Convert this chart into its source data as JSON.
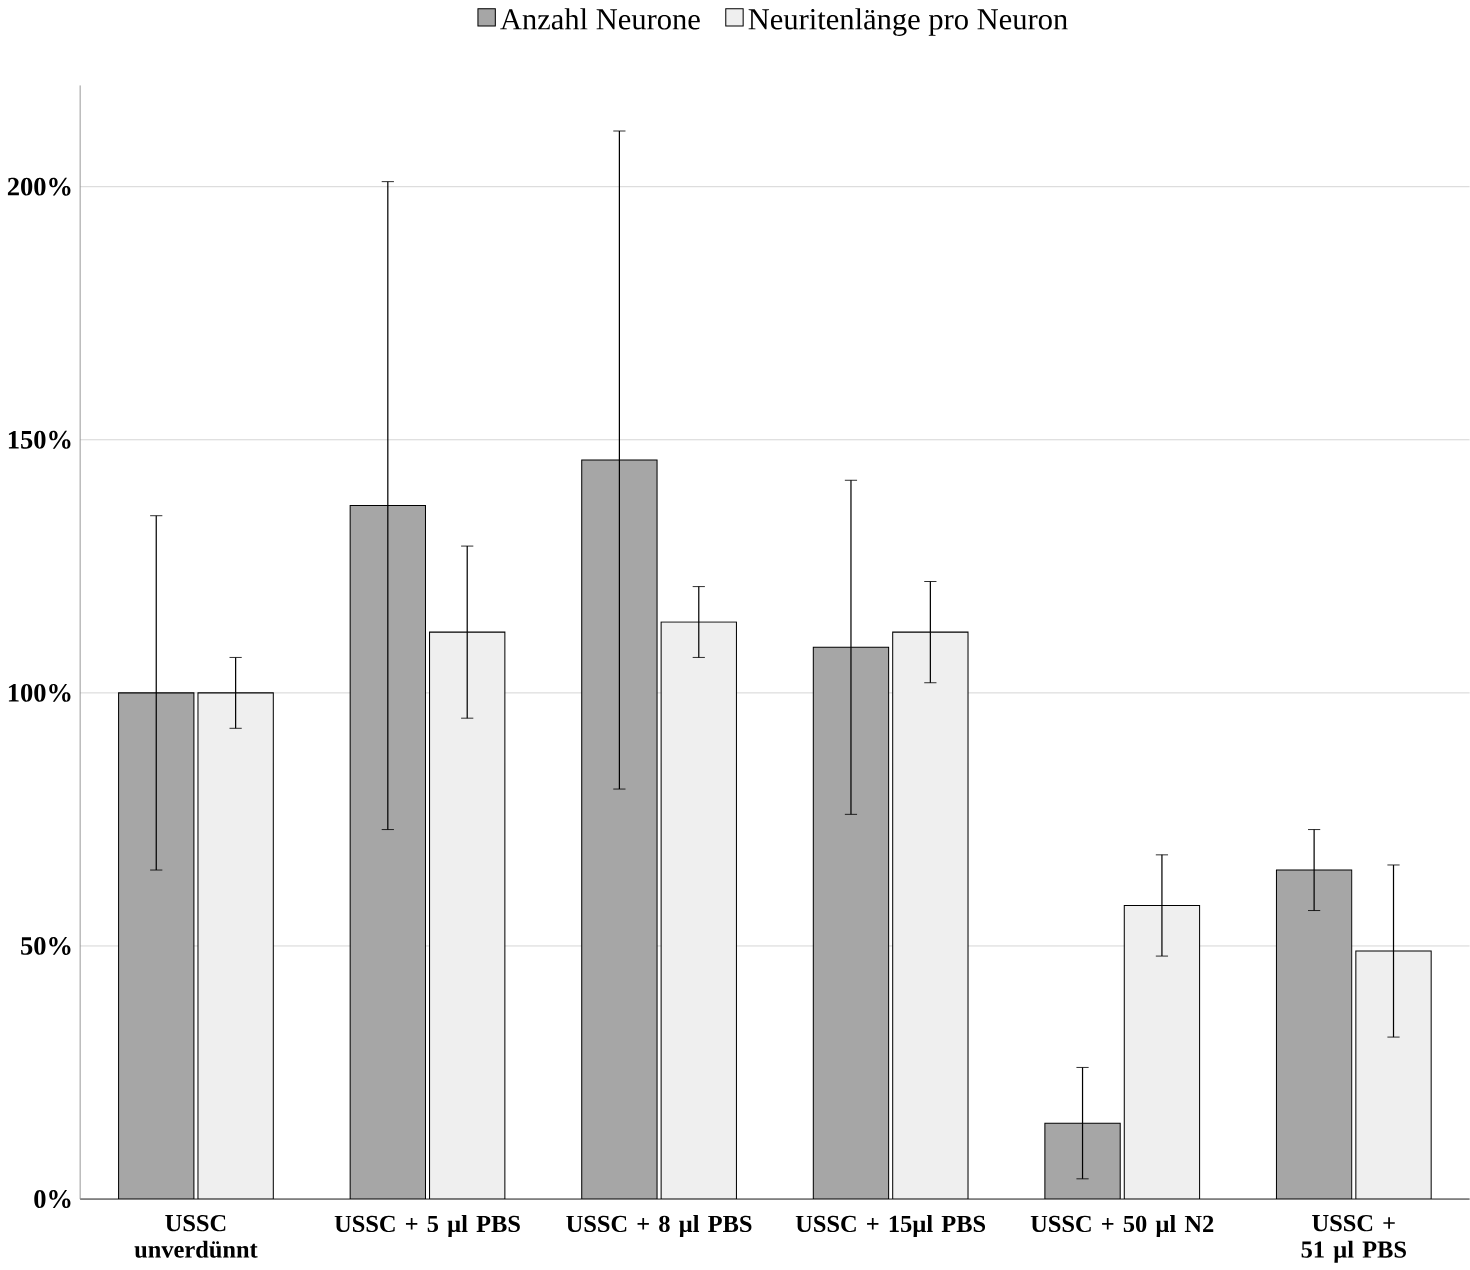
{
  "chart_data": {
    "type": "bar",
    "categories": [
      "USSC unverdünnt",
      "USSC + 5 µl PBS",
      "USSC + 8 µl PBS",
      "USSC + 15µl PBS",
      "USSC + 50 µl N2",
      "USSC + 51 µl PBS"
    ],
    "series": [
      {
        "name": "Anzahl Neurone",
        "color": "#a6a6a6",
        "values": [
          100,
          137,
          146,
          109,
          15,
          65
        ],
        "errors": [
          [
            65,
            135
          ],
          [
            73,
            201
          ],
          [
            81,
            211
          ],
          [
            76,
            142
          ],
          [
            4,
            26
          ],
          [
            57,
            73
          ]
        ]
      },
      {
        "name": "Neuritenlänge pro Neuron",
        "color": "#efefef",
        "values": [
          100,
          112,
          114,
          112,
          58,
          49
        ],
        "errors": [
          [
            93,
            107
          ],
          [
            95,
            129
          ],
          [
            107,
            121
          ],
          [
            102,
            122
          ],
          [
            48,
            68
          ],
          [
            32,
            66
          ]
        ]
      }
    ],
    "ylim": [
      0,
      220
    ],
    "yticks": [
      {
        "value": 0,
        "label": "0%"
      },
      {
        "value": 50,
        "label": "50%"
      },
      {
        "value": 100,
        "label": "100%"
      },
      {
        "value": 150,
        "label": "150%"
      },
      {
        "value": 200,
        "label": "200%"
      }
    ],
    "grid": "y",
    "legend": "top"
  }
}
